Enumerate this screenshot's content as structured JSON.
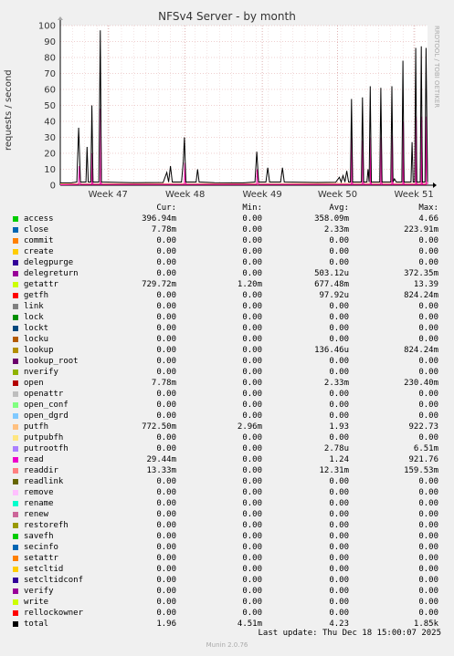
{
  "chart_data": {
    "type": "line",
    "title": "NFSv4 Server - by month",
    "ylabel": "requests / second",
    "ylim": [
      0,
      100
    ],
    "yticks": [
      0,
      10,
      20,
      30,
      40,
      50,
      60,
      70,
      80,
      90,
      100
    ],
    "x_tick_labels": [
      "Week 47",
      "Week 48",
      "Week 49",
      "Week 50",
      "Week 51"
    ],
    "grid": true,
    "series": [
      {
        "name": "total",
        "color": "#000000",
        "points": [
          [
            0.0,
            1.5
          ],
          [
            0.03,
            1.5
          ],
          [
            0.045,
            2.0
          ],
          [
            0.05,
            36.0
          ],
          [
            0.055,
            2.0
          ],
          [
            0.07,
            2.0
          ],
          [
            0.073,
            24.0
          ],
          [
            0.076,
            2.0
          ],
          [
            0.083,
            2.0
          ],
          [
            0.086,
            50.0
          ],
          [
            0.089,
            2.0
          ],
          [
            0.105,
            2.0
          ],
          [
            0.109,
            97.0
          ],
          [
            0.112,
            2.0
          ],
          [
            0.14,
            1.8
          ],
          [
            0.2,
            1.6
          ],
          [
            0.28,
            1.7
          ],
          [
            0.29,
            8.0
          ],
          [
            0.295,
            2.0
          ],
          [
            0.3,
            12.0
          ],
          [
            0.305,
            2.0
          ],
          [
            0.33,
            2.0
          ],
          [
            0.335,
            15.0
          ],
          [
            0.338,
            30.0
          ],
          [
            0.342,
            2.0
          ],
          [
            0.37,
            2.0
          ],
          [
            0.374,
            10.0
          ],
          [
            0.378,
            2.0
          ],
          [
            0.42,
            1.6
          ],
          [
            0.5,
            1.5
          ],
          [
            0.53,
            2.0
          ],
          [
            0.535,
            21.0
          ],
          [
            0.54,
            2.0
          ],
          [
            0.56,
            2.0
          ],
          [
            0.565,
            11.0
          ],
          [
            0.57,
            2.0
          ],
          [
            0.6,
            2.0
          ],
          [
            0.605,
            11.0
          ],
          [
            0.61,
            2.0
          ],
          [
            0.7,
            1.7
          ],
          [
            0.75,
            1.8
          ],
          [
            0.76,
            5.0
          ],
          [
            0.765,
            2.0
          ],
          [
            0.77,
            6.0
          ],
          [
            0.775,
            2.0
          ],
          [
            0.78,
            9.0
          ],
          [
            0.785,
            2.0
          ],
          [
            0.79,
            2.0
          ],
          [
            0.793,
            54.0
          ],
          [
            0.796,
            2.0
          ],
          [
            0.82,
            2.0
          ],
          [
            0.823,
            55.0
          ],
          [
            0.826,
            2.0
          ],
          [
            0.835,
            2.0
          ],
          [
            0.838,
            10.0
          ],
          [
            0.841,
            2.0
          ],
          [
            0.844,
            62.0
          ],
          [
            0.847,
            2.0
          ],
          [
            0.87,
            2.0
          ],
          [
            0.873,
            61.0
          ],
          [
            0.876,
            2.0
          ],
          [
            0.9,
            2.0
          ],
          [
            0.903,
            62.0
          ],
          [
            0.906,
            2.0
          ],
          [
            0.91,
            4.0
          ],
          [
            0.915,
            2.0
          ],
          [
            0.93,
            2.0
          ],
          [
            0.933,
            78.0
          ],
          [
            0.936,
            2.0
          ],
          [
            0.955,
            2.0
          ],
          [
            0.958,
            27.0
          ],
          [
            0.961,
            2.0
          ],
          [
            0.965,
            2.0
          ],
          [
            0.968,
            86.0
          ],
          [
            0.971,
            2.0
          ],
          [
            0.98,
            2.0
          ],
          [
            0.983,
            87.0
          ],
          [
            0.986,
            2.0
          ],
          [
            0.993,
            2.0
          ],
          [
            0.996,
            86.0
          ],
          [
            1.0,
            2.0
          ]
        ]
      },
      {
        "name": "read",
        "color": "#ff00aa",
        "points": [
          [
            0.0,
            0.3
          ],
          [
            0.05,
            0.5
          ],
          [
            0.052,
            12.0
          ],
          [
            0.055,
            0.5
          ],
          [
            0.086,
            0.5
          ],
          [
            0.087,
            20.0
          ],
          [
            0.089,
            0.5
          ],
          [
            0.109,
            0.5
          ],
          [
            0.11,
            48.0
          ],
          [
            0.112,
            0.5
          ],
          [
            0.338,
            0.5
          ],
          [
            0.339,
            14.0
          ],
          [
            0.342,
            0.5
          ],
          [
            0.535,
            0.5
          ],
          [
            0.536,
            10.0
          ],
          [
            0.54,
            0.5
          ],
          [
            0.793,
            0.5
          ],
          [
            0.794,
            30.0
          ],
          [
            0.796,
            0.5
          ],
          [
            0.823,
            0.5
          ],
          [
            0.824,
            28.0
          ],
          [
            0.826,
            0.5
          ],
          [
            0.844,
            0.5
          ],
          [
            0.845,
            30.0
          ],
          [
            0.847,
            0.5
          ],
          [
            0.873,
            0.5
          ],
          [
            0.874,
            30.0
          ],
          [
            0.876,
            0.5
          ],
          [
            0.903,
            0.5
          ],
          [
            0.904,
            31.0
          ],
          [
            0.906,
            0.5
          ],
          [
            0.933,
            0.5
          ],
          [
            0.934,
            40.0
          ],
          [
            0.936,
            0.5
          ],
          [
            0.968,
            0.5
          ],
          [
            0.969,
            43.0
          ],
          [
            0.971,
            0.5
          ],
          [
            0.983,
            0.5
          ],
          [
            0.984,
            43.0
          ],
          [
            0.986,
            0.5
          ],
          [
            0.996,
            0.5
          ],
          [
            0.997,
            43.0
          ],
          [
            1.0,
            0.5
          ]
        ]
      },
      {
        "name": "putfh",
        "color": "#ffaa66",
        "points": [
          [
            0.0,
            0.9
          ],
          [
            0.25,
            1.0
          ],
          [
            0.5,
            0.9
          ],
          [
            0.75,
            1.1
          ],
          [
            1.0,
            1.0
          ]
        ]
      }
    ]
  },
  "legend": {
    "headers": {
      "cur": "Cur:",
      "min": "Min:",
      "avg": "Avg:",
      "max": "Max:"
    },
    "rows": [
      {
        "name": "access",
        "color": "#00cc00",
        "cur": "396.94m",
        "min": "0.00",
        "avg": "358.09m",
        "max": "4.66"
      },
      {
        "name": "close",
        "color": "#0066b3",
        "cur": "7.78m",
        "min": "0.00",
        "avg": "2.33m",
        "max": "223.91m"
      },
      {
        "name": "commit",
        "color": "#ff8000",
        "cur": "0.00",
        "min": "0.00",
        "avg": "0.00",
        "max": "0.00"
      },
      {
        "name": "create",
        "color": "#ffcc00",
        "cur": "0.00",
        "min": "0.00",
        "avg": "0.00",
        "max": "0.00"
      },
      {
        "name": "delegpurge",
        "color": "#330099",
        "cur": "0.00",
        "min": "0.00",
        "avg": "0.00",
        "max": "0.00"
      },
      {
        "name": "delegreturn",
        "color": "#990099",
        "cur": "0.00",
        "min": "0.00",
        "avg": "503.12u",
        "max": "372.35m"
      },
      {
        "name": "getattr",
        "color": "#ccff00",
        "cur": "729.72m",
        "min": "1.20m",
        "avg": "677.48m",
        "max": "13.39"
      },
      {
        "name": "getfh",
        "color": "#ff0000",
        "cur": "0.00",
        "min": "0.00",
        "avg": "97.92u",
        "max": "824.24m"
      },
      {
        "name": "link",
        "color": "#808080",
        "cur": "0.00",
        "min": "0.00",
        "avg": "0.00",
        "max": "0.00"
      },
      {
        "name": "lock",
        "color": "#008f00",
        "cur": "0.00",
        "min": "0.00",
        "avg": "0.00",
        "max": "0.00"
      },
      {
        "name": "lockt",
        "color": "#00487d",
        "cur": "0.00",
        "min": "0.00",
        "avg": "0.00",
        "max": "0.00"
      },
      {
        "name": "locku",
        "color": "#b35a00",
        "cur": "0.00",
        "min": "0.00",
        "avg": "0.00",
        "max": "0.00"
      },
      {
        "name": "lookup",
        "color": "#b38f00",
        "cur": "0.00",
        "min": "0.00",
        "avg": "136.46u",
        "max": "824.24m"
      },
      {
        "name": "lookup_root",
        "color": "#6b006b",
        "cur": "0.00",
        "min": "0.00",
        "avg": "0.00",
        "max": "0.00"
      },
      {
        "name": "nverify",
        "color": "#8fb300",
        "cur": "0.00",
        "min": "0.00",
        "avg": "0.00",
        "max": "0.00"
      },
      {
        "name": "open",
        "color": "#b30000",
        "cur": "7.78m",
        "min": "0.00",
        "avg": "2.33m",
        "max": "230.40m"
      },
      {
        "name": "openattr",
        "color": "#bebebe",
        "cur": "0.00",
        "min": "0.00",
        "avg": "0.00",
        "max": "0.00"
      },
      {
        "name": "open_conf",
        "color": "#80ff80",
        "cur": "0.00",
        "min": "0.00",
        "avg": "0.00",
        "max": "0.00"
      },
      {
        "name": "open_dgrd",
        "color": "#80c9ff",
        "cur": "0.00",
        "min": "0.00",
        "avg": "0.00",
        "max": "0.00"
      },
      {
        "name": "putfh",
        "color": "#ffc080",
        "cur": "772.50m",
        "min": "2.96m",
        "avg": "1.93",
        "max": "922.73"
      },
      {
        "name": "putpubfh",
        "color": "#ffe680",
        "cur": "0.00",
        "min": "0.00",
        "avg": "0.00",
        "max": "0.00"
      },
      {
        "name": "putrootfh",
        "color": "#aa80ff",
        "cur": "0.00",
        "min": "0.00",
        "avg": "2.78u",
        "max": "6.51m"
      },
      {
        "name": "read",
        "color": "#ee00cc",
        "cur": "29.44m",
        "min": "0.00",
        "avg": "1.24",
        "max": "921.76"
      },
      {
        "name": "readdir",
        "color": "#ff8080",
        "cur": "13.33m",
        "min": "0.00",
        "avg": "12.31m",
        "max": "159.53m"
      },
      {
        "name": "readlink",
        "color": "#666600",
        "cur": "0.00",
        "min": "0.00",
        "avg": "0.00",
        "max": "0.00"
      },
      {
        "name": "remove",
        "color": "#ffbfff",
        "cur": "0.00",
        "min": "0.00",
        "avg": "0.00",
        "max": "0.00"
      },
      {
        "name": "rename",
        "color": "#00ffcc",
        "cur": "0.00",
        "min": "0.00",
        "avg": "0.00",
        "max": "0.00"
      },
      {
        "name": "renew",
        "color": "#cc6699",
        "cur": "0.00",
        "min": "0.00",
        "avg": "0.00",
        "max": "0.00"
      },
      {
        "name": "restorefh",
        "color": "#999900",
        "cur": "0.00",
        "min": "0.00",
        "avg": "0.00",
        "max": "0.00"
      },
      {
        "name": "savefh",
        "color": "#00cc00",
        "cur": "0.00",
        "min": "0.00",
        "avg": "0.00",
        "max": "0.00"
      },
      {
        "name": "secinfo",
        "color": "#0066b3",
        "cur": "0.00",
        "min": "0.00",
        "avg": "0.00",
        "max": "0.00"
      },
      {
        "name": "setattr",
        "color": "#ff8000",
        "cur": "0.00",
        "min": "0.00",
        "avg": "0.00",
        "max": "0.00"
      },
      {
        "name": "setcltid",
        "color": "#ffcc00",
        "cur": "0.00",
        "min": "0.00",
        "avg": "0.00",
        "max": "0.00"
      },
      {
        "name": "setcltidconf",
        "color": "#330099",
        "cur": "0.00",
        "min": "0.00",
        "avg": "0.00",
        "max": "0.00"
      },
      {
        "name": "verify",
        "color": "#990099",
        "cur": "0.00",
        "min": "0.00",
        "avg": "0.00",
        "max": "0.00"
      },
      {
        "name": "write",
        "color": "#ccff00",
        "cur": "0.00",
        "min": "0.00",
        "avg": "0.00",
        "max": "0.00"
      },
      {
        "name": "rellockowner",
        "color": "#ff0000",
        "cur": "0.00",
        "min": "0.00",
        "avg": "0.00",
        "max": "0.00"
      },
      {
        "name": "total",
        "color": "#000000",
        "cur": "1.96",
        "min": "4.51m",
        "avg": "4.23",
        "max": "1.85k"
      }
    ]
  },
  "last_update": "Last update: Thu Dec 18 15:00:07 2025",
  "side_label": "RRDTOOL / TOBI OETIKER",
  "footer": "Munin 2.0.76"
}
